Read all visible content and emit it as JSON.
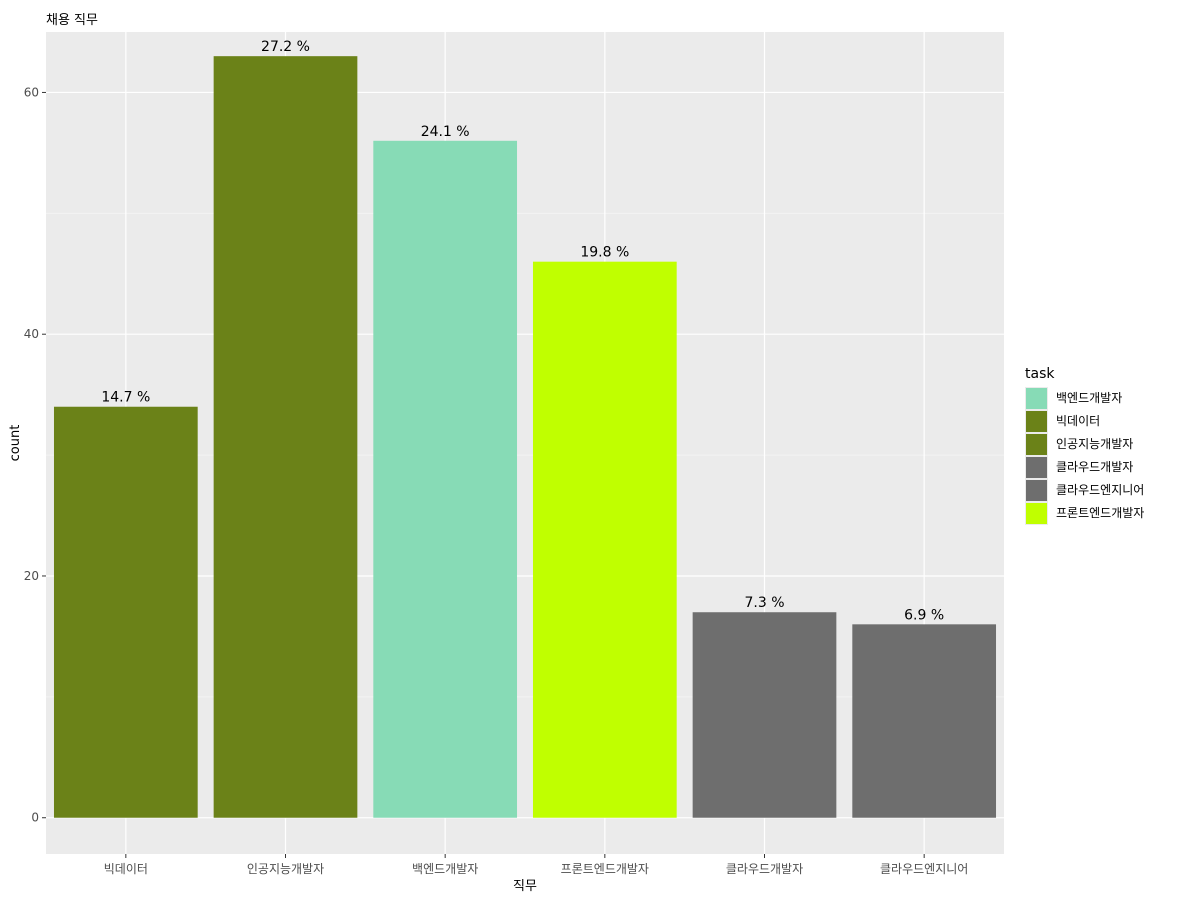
{
  "chart_data": {
    "type": "bar",
    "title": "채용 직무",
    "xlabel": "직무",
    "ylabel": "count",
    "ylim": [
      -3,
      65
    ],
    "yticks": [
      0,
      20,
      40,
      60
    ],
    "grid": true,
    "legend_position": "right",
    "legend_title": "task",
    "categories": [
      "빅데이터",
      "인공지능개발자",
      "백엔드개발자",
      "프론트엔드개발자",
      "클라우드개발자",
      "클라우드엔지니어"
    ],
    "values": [
      34,
      63,
      56,
      46,
      17,
      16
    ],
    "labels": [
      "14.7 %",
      "27.2 %",
      "24.1 %",
      "19.8 %",
      "7.3 %",
      "6.9 %"
    ],
    "colors": [
      "#6b8218",
      "#6b8218",
      "#87dbb6",
      "#c0ff00",
      "#6e6e6e",
      "#6e6e6e"
    ],
    "legend": [
      {
        "label": "백엔드개발자",
        "color": "#87dbb6"
      },
      {
        "label": "빅데이터",
        "color": "#6b8218"
      },
      {
        "label": "인공지능개발자",
        "color": "#6b8218"
      },
      {
        "label": "클라우드개발자",
        "color": "#6e6e6e"
      },
      {
        "label": "클라우드엔지니어",
        "color": "#6e6e6e"
      },
      {
        "label": "프론트엔드개발자",
        "color": "#c0ff00"
      }
    ]
  }
}
